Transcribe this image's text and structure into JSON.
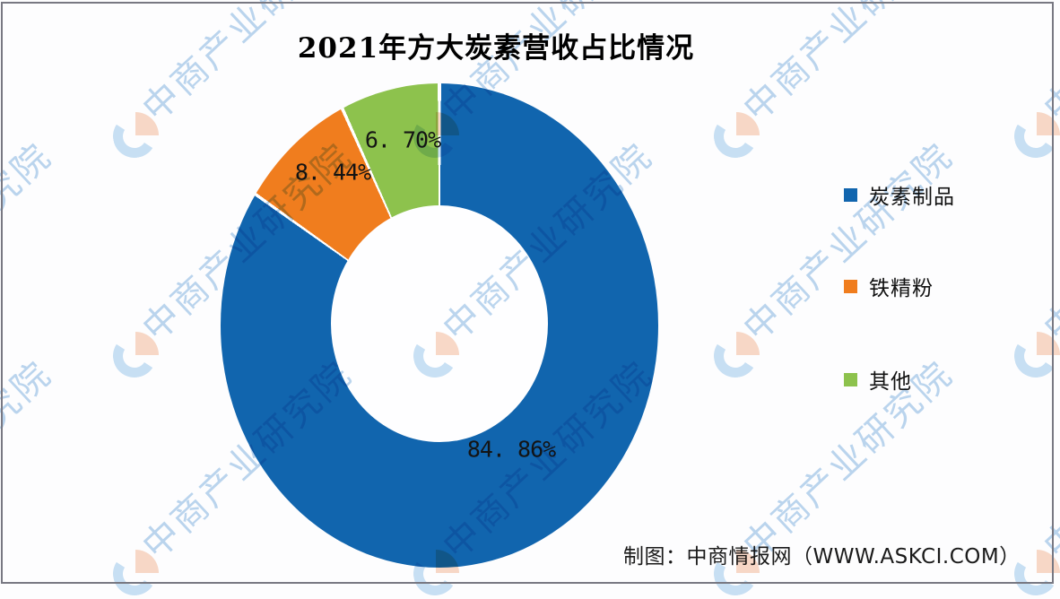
{
  "title": "2021年方大炭素营收占比情况",
  "chart_data": {
    "type": "pie",
    "subtype": "donut",
    "title": "2021年方大炭素营收占比情况",
    "start_angle_deg": 0,
    "direction": "clockwise",
    "hole_ratio": 0.5,
    "legend_position": "right",
    "slices": [
      {
        "label": "炭素制品",
        "value": 84.86,
        "display": "84. 86%",
        "color": "#1165AE"
      },
      {
        "label": "铁精粉",
        "value": 8.44,
        "display": "8. 44%",
        "color": "#F07D1E"
      },
      {
        "label": "其他",
        "value": 6.7,
        "display": "6. 70%",
        "color": "#8DC24D"
      }
    ]
  },
  "attribution": "制图：中商情报网（WWW.ASKCI.COM）",
  "watermark": {
    "text": "中商产业研究院",
    "text_color": "#BCD6EE",
    "logo_blue": "#C9E1F4",
    "logo_orange": "#F9D9C7"
  }
}
